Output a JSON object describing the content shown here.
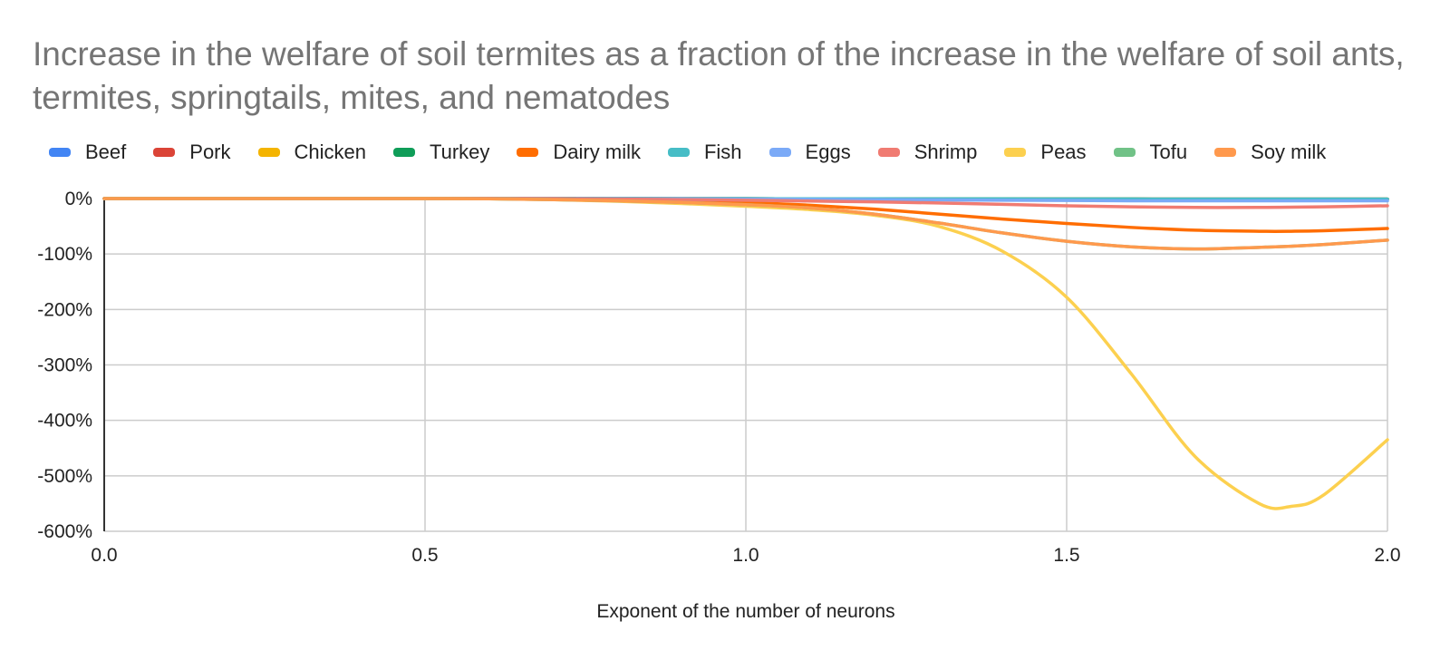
{
  "chart_data": {
    "type": "line",
    "title": "Increase in the welfare of soil termites as a fraction of the increase in the welfare of soil ants, termites, springtails, mites, and nematodes",
    "xlabel": "Exponent of the number of neurons",
    "ylabel": "",
    "xlim": [
      0,
      2
    ],
    "ylim": [
      -600,
      0
    ],
    "x_ticks": [
      "0.0",
      "0.5",
      "1.0",
      "1.5",
      "2.0"
    ],
    "y_ticks": [
      "0%",
      "-100%",
      "-200%",
      "-300%",
      "-400%",
      "-500%",
      "-600%"
    ],
    "grid": true,
    "legend_position": "top",
    "x": [
      0,
      0.1,
      0.2,
      0.3,
      0.4,
      0.5,
      0.6,
      0.7,
      0.8,
      0.9,
      1.0,
      1.1,
      1.2,
      1.3,
      1.4,
      1.5,
      1.6,
      1.7,
      1.8,
      1.85,
      1.9,
      2.0
    ],
    "series": [
      {
        "name": "Beef",
        "color": "#4285f4",
        "values": [
          0,
          0,
          0,
          0,
          0,
          0,
          0,
          0,
          0,
          -0.2,
          -0.3,
          -0.4,
          -0.5,
          -0.6,
          -0.7,
          -0.8,
          -0.9,
          -1,
          -1,
          -1,
          -1,
          -1
        ]
      },
      {
        "name": "Pork",
        "color": "#db4437",
        "values": [
          0,
          0,
          0,
          0,
          0,
          0,
          0,
          0,
          0,
          -0.2,
          -0.3,
          -0.4,
          -0.5,
          -0.6,
          -0.7,
          -0.8,
          -0.9,
          -1,
          -1,
          -1,
          -1,
          -1
        ]
      },
      {
        "name": "Chicken",
        "color": "#f4b400",
        "values": [
          0,
          0,
          0,
          0,
          0,
          0,
          0,
          0,
          0,
          -0.2,
          -0.3,
          -0.4,
          -0.5,
          -0.6,
          -0.7,
          -0.8,
          -0.9,
          -1,
          -1,
          -1,
          -1,
          -1
        ]
      },
      {
        "name": "Turkey",
        "color": "#0f9d58",
        "values": [
          0,
          0,
          0,
          0,
          0,
          0,
          0,
          0,
          0,
          -0.2,
          -0.3,
          -0.4,
          -0.5,
          -0.6,
          -0.7,
          -0.8,
          -0.9,
          -1,
          -1,
          -1,
          -1,
          -1
        ]
      },
      {
        "name": "Dairy milk",
        "color": "#ff6d01",
        "values": [
          0,
          0,
          0,
          0,
          0,
          0,
          0,
          -0.5,
          -2,
          -4,
          -7,
          -12,
          -19,
          -28,
          -37,
          -45,
          -52,
          -57,
          -59,
          -59,
          -58,
          -54
        ]
      },
      {
        "name": "Fish",
        "color": "#46bdc6",
        "values": [
          0,
          0,
          0,
          0,
          0,
          0,
          0,
          0,
          0,
          -0.2,
          -0.3,
          -0.4,
          -0.5,
          -0.6,
          -0.7,
          -0.8,
          -0.9,
          -1,
          -1,
          -1,
          -1,
          -1
        ]
      },
      {
        "name": "Eggs",
        "color": "#7baaf7",
        "values": [
          0,
          0,
          0,
          0,
          0,
          0,
          0,
          0,
          -0.3,
          -0.5,
          -1,
          -1.5,
          -2,
          -2.5,
          -3,
          -3.5,
          -4,
          -4,
          -4,
          -4,
          -4,
          -4
        ]
      },
      {
        "name": "Shrimp",
        "color": "#f07b72",
        "values": [
          0,
          0,
          0,
          0,
          0,
          0,
          0,
          -0.3,
          -1,
          -2,
          -3,
          -4.5,
          -6,
          -8,
          -10.5,
          -13,
          -15,
          -16,
          -16,
          -15.5,
          -15,
          -13
        ]
      },
      {
        "name": "Peas",
        "color": "#fcd04f",
        "values": [
          0,
          0,
          0,
          0,
          0,
          0,
          -0.5,
          -2,
          -5,
          -9,
          -14,
          -20,
          -30,
          -50,
          -95,
          -178,
          -315,
          -465,
          -550,
          -555,
          -535,
          -435
        ]
      },
      {
        "name": "Tofu",
        "color": "#71c287",
        "values": [
          0,
          0,
          0,
          0,
          0,
          0,
          -0.5,
          -2,
          -4,
          -7,
          -11,
          -17,
          -28,
          -44,
          -62,
          -77,
          -87,
          -91,
          -88,
          -86,
          -83,
          -75
        ]
      },
      {
        "name": "Soy milk",
        "color": "#ff994d",
        "values": [
          0,
          0,
          0,
          0,
          0,
          0,
          -0.5,
          -2,
          -4,
          -7,
          -11,
          -17,
          -28,
          -44,
          -62,
          -77,
          -87,
          -91,
          -88,
          -86,
          -83,
          -75
        ]
      }
    ]
  }
}
